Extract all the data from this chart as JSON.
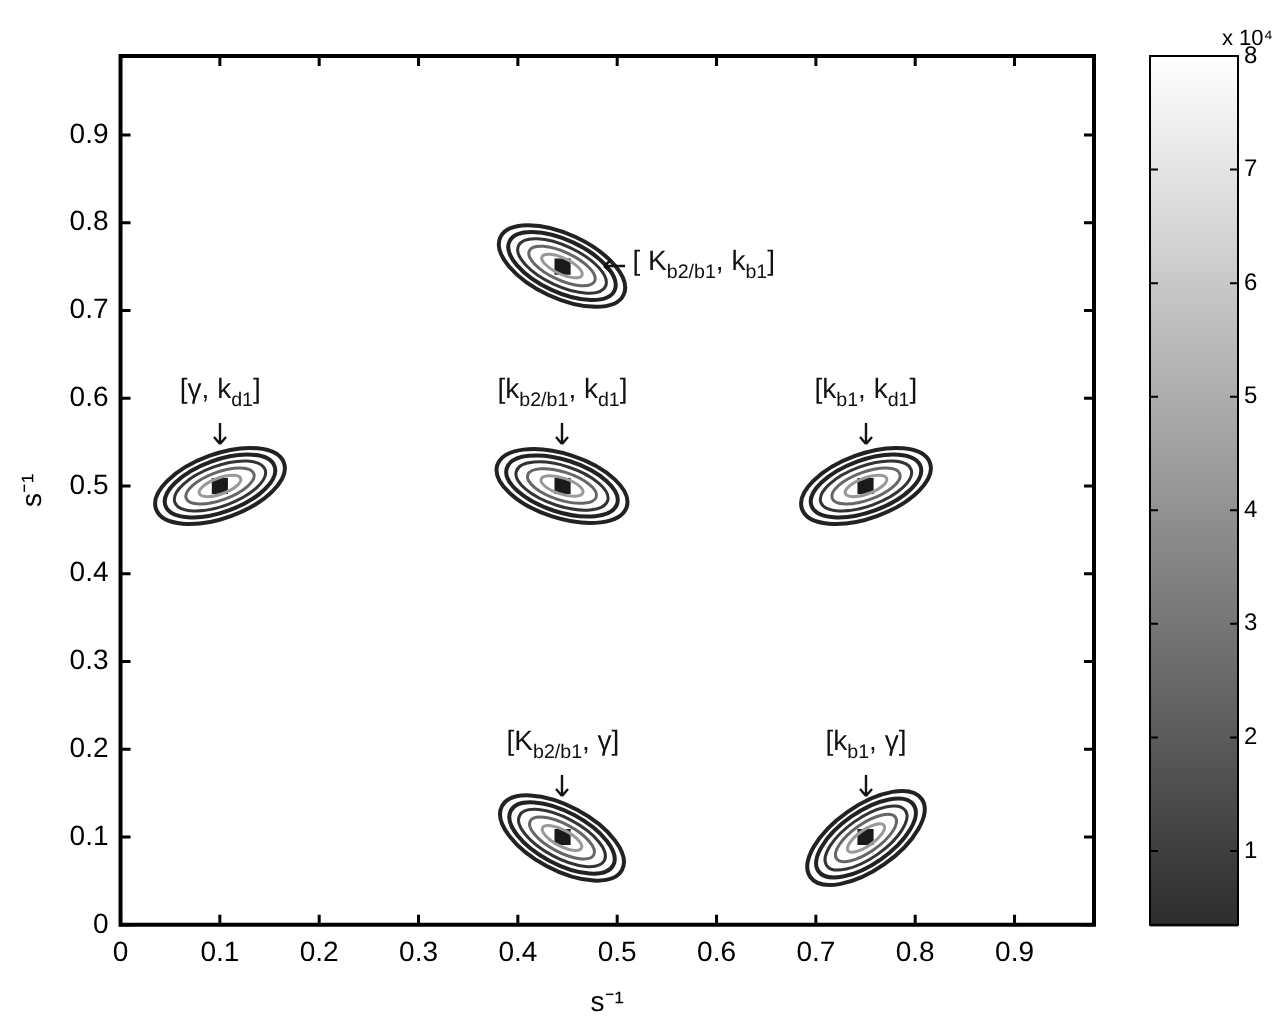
{
  "chart_data": {
    "type": "scatter",
    "xlabel": "s⁻¹",
    "ylabel": "s⁻¹",
    "x": [
      0.1,
      0.445,
      0.445,
      0.75,
      0.445,
      0.75
    ],
    "values": [
      0.5,
      0.75,
      0.5,
      0.5,
      0.1,
      0.1
    ],
    "color": "#1a1a1a",
    "marker": "square",
    "xlim": [
      0,
      0.98
    ],
    "ylim": [
      0,
      0.99
    ],
    "xticks": [
      0,
      0.1,
      0.2,
      0.3,
      0.4,
      0.5,
      0.6,
      0.7,
      0.8,
      0.9
    ],
    "yticks": [
      0,
      0.1,
      0.2,
      0.3,
      0.4,
      0.5,
      0.6,
      0.7,
      0.8,
      0.9
    ],
    "clabel": "x 10⁴",
    "clim": [
      0.35,
      8
    ],
    "cticks": [
      1,
      2,
      3,
      4,
      5,
      6,
      7,
      8
    ],
    "grid": false,
    "legend": false,
    "annotations": [
      {
        "text": "[γ, k$_{d1}$]",
        "x": 0.1,
        "y": 0.5
      },
      {
        "text": "[ K$_{b2/b1}$, k$_{b1}$]",
        "x": 0.445,
        "y": 0.75
      },
      {
        "text": "[k$_{b2/b1}$, k$_{d1}$]",
        "x": 0.445,
        "y": 0.5
      },
      {
        "text": "[k$_{b1}$, k$_{d1}$]",
        "x": 0.75,
        "y": 0.5
      },
      {
        "text": "[K$_{b2/b1}$, γ]",
        "x": 0.445,
        "y": 0.1
      },
      {
        "text": "[k$_{b1}$, γ]",
        "x": 0.75,
        "y": 0.1
      }
    ]
  }
}
